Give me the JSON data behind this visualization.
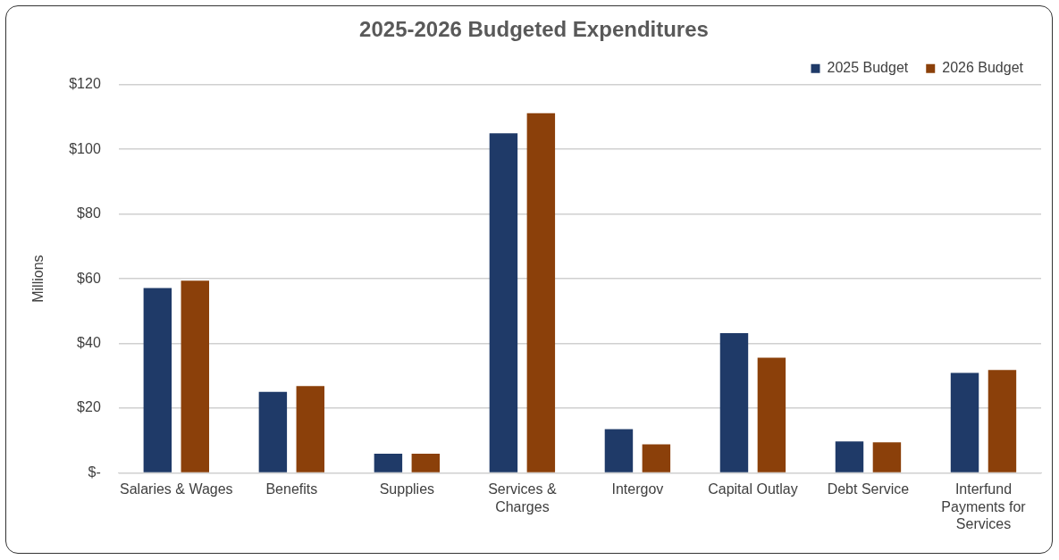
{
  "chart_data": {
    "type": "bar",
    "title": "2025-2026 Budgeted Expenditures",
    "ylabel": "Millions",
    "categories": [
      "Salaries & Wages",
      "Benefits",
      "Supplies",
      "Services & Charges",
      "Intergov",
      "Capital Outlay",
      "Debt Service",
      "Interfund Payments for Services"
    ],
    "series": [
      {
        "name": "2025 Budget",
        "color": "#1f3a68",
        "values": [
          57.1,
          25,
          5.9,
          105,
          13.5,
          43.2,
          9.7,
          30.9
        ]
      },
      {
        "name": "2026 Budget",
        "color": "#8b400a",
        "values": [
          59.4,
          26.8,
          5.9,
          111.2,
          8.8,
          35.6,
          9.4,
          31.8
        ]
      }
    ],
    "ylim": [
      0,
      120
    ],
    "yticks": [
      {
        "value": 0,
        "label": "$-"
      },
      {
        "value": 20,
        "label": "$20"
      },
      {
        "value": 40,
        "label": "$40"
      },
      {
        "value": 60,
        "label": "$60"
      },
      {
        "value": 80,
        "label": "$80"
      },
      {
        "value": 100,
        "label": "$100"
      },
      {
        "value": 120,
        "label": "$120"
      }
    ],
    "grid": "y",
    "legend": "top right"
  }
}
